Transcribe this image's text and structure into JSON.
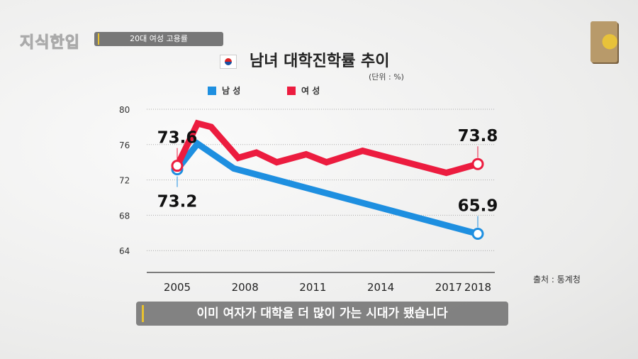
{
  "header": {
    "logo": "지식한입",
    "tag": "20대 여성 고용률"
  },
  "chart_data": {
    "type": "line",
    "title": "남녀 대학진학률 추이",
    "unit": "(단위 : %)",
    "source": "출처 : 통계청",
    "x_ticks": [
      2005,
      2008,
      2011,
      2014,
      2017,
      2018
    ],
    "y_ticks": [
      64,
      68,
      72,
      76,
      80
    ],
    "ylim": [
      62,
      80
    ],
    "grid": true,
    "legend_placement": "top",
    "series": [
      {
        "name": "남 성",
        "color": "#1e8fe0",
        "x": [
          2005,
          2005.9,
          2007.5,
          2018
        ],
        "y": [
          73.2,
          76.1,
          73.3,
          65.9
        ],
        "labels": [
          {
            "x": 2005,
            "text": "73.2",
            "pos": "below"
          },
          {
            "x": 2018,
            "text": "65.9",
            "pos": "above"
          }
        ]
      },
      {
        "name": "여 성",
        "color": "#ec1c3f",
        "x": [
          2005,
          2005.9,
          2006.5,
          2007.7,
          2008.5,
          2009.4,
          2010.7,
          2011.6,
          2013.2,
          2016.9,
          2018
        ],
        "y": [
          73.6,
          78.4,
          78.0,
          74.5,
          75.1,
          74.0,
          74.9,
          74.0,
          75.3,
          72.8,
          73.8
        ],
        "labels": [
          {
            "x": 2005,
            "text": "73.6",
            "pos": "above"
          },
          {
            "x": 2018,
            "text": "73.8",
            "pos": "above"
          }
        ]
      }
    ]
  },
  "caption": "이미 여자가 대학을 더 많이 가는 시대가 됐습니다"
}
